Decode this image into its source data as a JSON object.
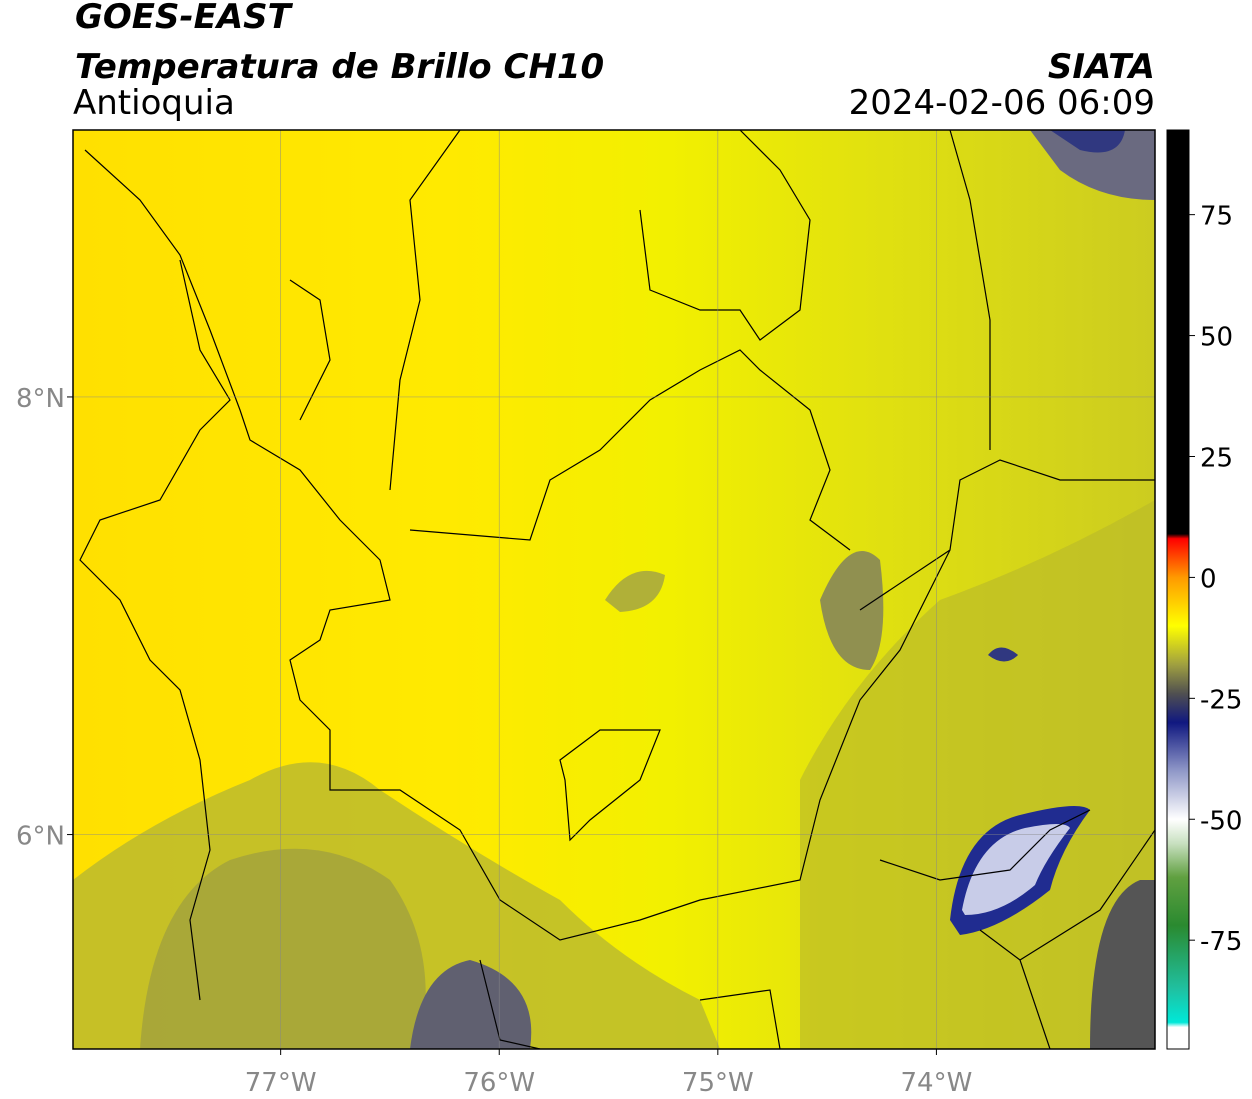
{
  "header": {
    "title": "GOES-EAST",
    "subtitle": "Temperatura de Brillo CH10",
    "region": "Antioquia",
    "source": "SIATA",
    "datetime": "2024-02-06 06:09"
  },
  "map": {
    "xlim": [
      -77.95,
      -73.0
    ],
    "ylim": [
      5.02,
      9.22
    ],
    "xticks": [
      {
        "value": -77,
        "label": "77°W"
      },
      {
        "value": -76,
        "label": "76°W"
      },
      {
        "value": -75,
        "label": "75°W"
      },
      {
        "value": -74,
        "label": "74°W"
      }
    ],
    "yticks": [
      {
        "value": 6,
        "label": "6°N"
      },
      {
        "value": 8,
        "label": "8°N"
      }
    ],
    "grid": true
  },
  "colorbar": {
    "clim": [
      -97.5,
      92.5
    ],
    "ticks": [
      -75,
      -50,
      -25,
      0,
      25,
      50,
      75
    ],
    "colors": [
      {
        "value": -97.5,
        "color": "#ffffff"
      },
      {
        "value": -93,
        "color": "#ffffff"
      },
      {
        "value": -92,
        "color": "#00e8d8"
      },
      {
        "value": -85,
        "color": "#20c0a0"
      },
      {
        "value": -72,
        "color": "#2a8a30"
      },
      {
        "value": -62,
        "color": "#60a040"
      },
      {
        "value": -55,
        "color": "#c8e0c0"
      },
      {
        "value": -50,
        "color": "#ffffff"
      },
      {
        "value": -40,
        "color": "#9098c8"
      },
      {
        "value": -30,
        "color": "#101880"
      },
      {
        "value": -24,
        "color": "#505050"
      },
      {
        "value": -18,
        "color": "#a0a040"
      },
      {
        "value": -10,
        "color": "#ffff00"
      },
      {
        "value": 0,
        "color": "#ff9a00"
      },
      {
        "value": 8,
        "color": "#ff0000"
      },
      {
        "value": 9,
        "color": "#000000"
      },
      {
        "value": 92.5,
        "color": "#000000"
      }
    ]
  }
}
